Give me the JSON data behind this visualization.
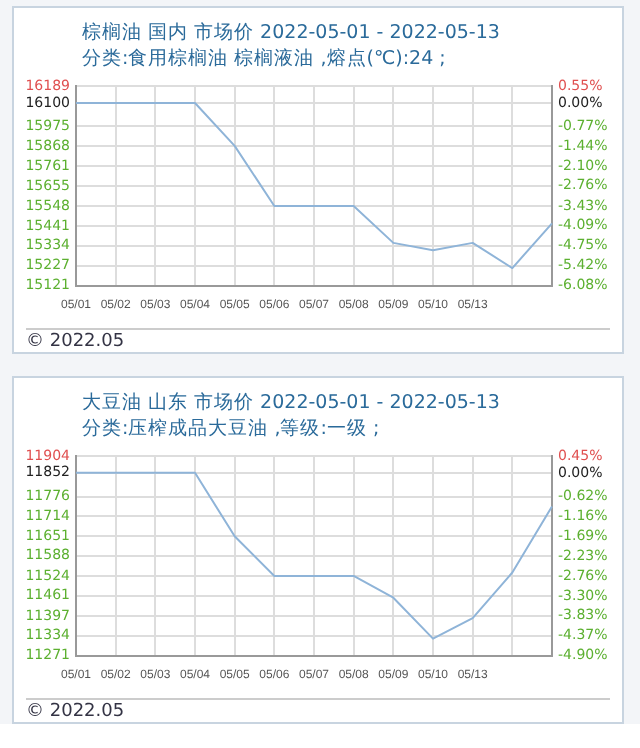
{
  "chart_data": [
    {
      "type": "line",
      "title": "棕榈油 国内 市场价 2022-05-01 - 2022-05-13",
      "subtitle": "分类:食用棕榈油 棕榈液油 ,熔点(℃):24 ;",
      "categories": [
        "05/01",
        "05/02",
        "05/03",
        "05/04",
        "05/05",
        "05/06",
        "05/07",
        "05/08",
        "05/09",
        "05/10",
        "05/13",
        null,
        null
      ],
      "series": [
        {
          "color": "#8fb4d8",
          "values": [
            16100,
            16100,
            16100,
            16100,
            15870,
            15548,
            15548,
            15548,
            15350,
            15310,
            15350,
            15215,
            15455
          ]
        }
      ],
      "ylim": [
        15121,
        16189
      ],
      "yticks": [
        15121,
        15227,
        15334,
        15441,
        15548,
        15655,
        15761,
        15868,
        15975,
        16100,
        16189
      ],
      "y2lim": [
        -6.08,
        0.55
      ],
      "y2ticks": [
        {
          "value": -6.08,
          "label": "-6.08%"
        },
        {
          "value": -5.42,
          "label": "-5.42%"
        },
        {
          "value": -4.75,
          "label": "-4.75%"
        },
        {
          "value": -4.09,
          "label": "-4.09%"
        },
        {
          "value": -3.43,
          "label": "-3.43%"
        },
        {
          "value": -2.76,
          "label": "-2.76%"
        },
        {
          "value": -2.1,
          "label": "-2.10%"
        },
        {
          "value": -1.44,
          "label": "-1.44%"
        },
        {
          "value": -0.77,
          "label": "-0.77%"
        },
        {
          "value": 0,
          "label": "0.00%"
        },
        {
          "value": 0.55,
          "label": "0.55%"
        }
      ],
      "grid": true,
      "marker": "none",
      "annotations": [
        "© 2022.05"
      ]
    },
    {
      "type": "line",
      "title": "大豆油 山东 市场价 2022-05-01 - 2022-05-13",
      "subtitle": "分类:压榨成品大豆油 ,等级:一级 ;",
      "categories": [
        "05/01",
        "05/02",
        "05/03",
        "05/04",
        "05/05",
        "05/06",
        "05/07",
        "05/08",
        "05/09",
        "05/10",
        "05/13",
        null,
        null
      ],
      "series": [
        {
          "color": "#8fb4d8",
          "values": [
            11852,
            11852,
            11852,
            11852,
            11650,
            11524,
            11524,
            11524,
            11455,
            11325,
            11390,
            11535,
            11745
          ]
        }
      ],
      "ylim": [
        11271,
        11904
      ],
      "yticks": [
        11271,
        11334,
        11397,
        11461,
        11524,
        11588,
        11651,
        11714,
        11776,
        11852,
        11904
      ],
      "y2lim": [
        -4.9,
        0.45
      ],
      "y2ticks": [
        {
          "value": -4.9,
          "label": "-4.90%"
        },
        {
          "value": -4.37,
          "label": "-4.37%"
        },
        {
          "value": -3.83,
          "label": "-3.83%"
        },
        {
          "value": -3.3,
          "label": "-3.30%"
        },
        {
          "value": -2.76,
          "label": "-2.76%"
        },
        {
          "value": -2.23,
          "label": "-2.23%"
        },
        {
          "value": -1.69,
          "label": "-1.69%"
        },
        {
          "value": -1.16,
          "label": "-1.16%"
        },
        {
          "value": -0.62,
          "label": "-0.62%"
        },
        {
          "value": 0,
          "label": "0.00%"
        },
        {
          "value": 0.45,
          "label": "0.45%"
        }
      ],
      "grid": true,
      "marker": "none",
      "annotations": [
        "© 2022.05"
      ]
    }
  ]
}
